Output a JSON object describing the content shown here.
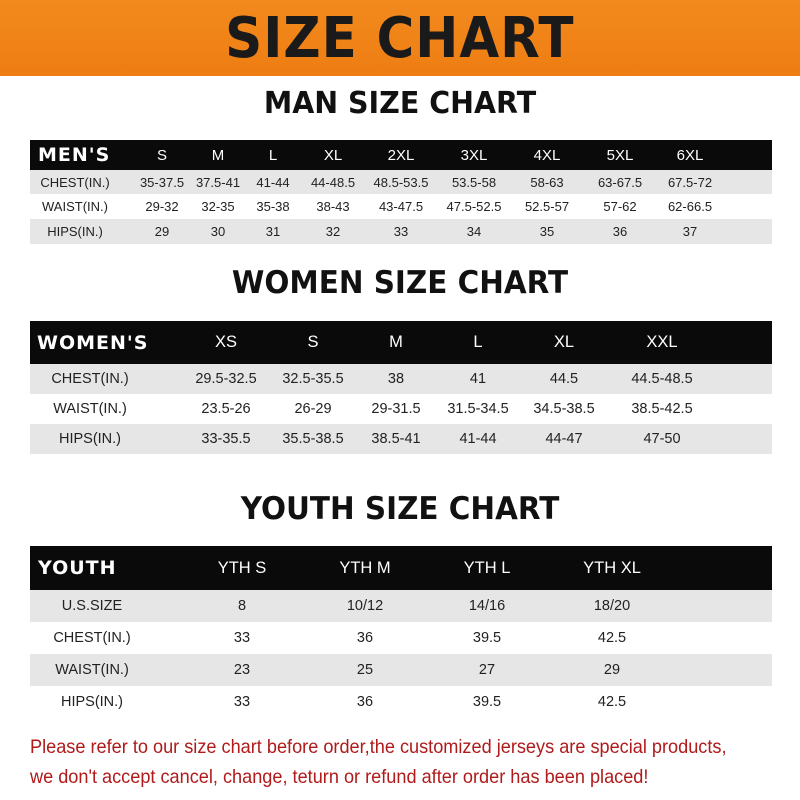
{
  "banner": {
    "title": "SIZE CHART",
    "color": "#f28a1e"
  },
  "note": {
    "line1": "Please refer to our size chart before order,the customized jerseys are special products,",
    "line2": "we don't accept cancel, change, teturn or refund after order has been placed!",
    "color": "#b01a1a"
  },
  "tables": [
    {
      "title": "MAN SIZE CHART",
      "header": [
        "MEN'S",
        "S",
        "M",
        "L",
        "XL",
        "2XL",
        "3XL",
        "4XL",
        "5XL",
        "6XL"
      ],
      "rows": [
        [
          "CHEST(IN.)",
          "35-37.5",
          "37.5-41",
          "41-44",
          "44-48.5",
          "48.5-53.5",
          "53.5-58",
          "58-63",
          "63-67.5",
          "67.5-72"
        ],
        [
          "WAIST(IN.)",
          "29-32",
          "32-35",
          "35-38",
          "38-43",
          "43-47.5",
          "47.5-52.5",
          "52.5-57",
          "57-62",
          "62-66.5"
        ],
        [
          "HIPS(IN.)",
          "29",
          "30",
          "31",
          "32",
          "33",
          "34",
          "35",
          "36",
          "37"
        ]
      ]
    },
    {
      "title": "WOMEN SIZE CHART",
      "header": [
        "WOMEN'S",
        "XS",
        "S",
        "M",
        "L",
        "XL",
        "XXL"
      ],
      "rows": [
        [
          "CHEST(IN.)",
          "29.5-32.5",
          "32.5-35.5",
          "38",
          "41",
          "44.5",
          "44.5-48.5"
        ],
        [
          "WAIST(IN.)",
          "23.5-26",
          "26-29",
          "29-31.5",
          "31.5-34.5",
          "34.5-38.5",
          "38.5-42.5"
        ],
        [
          "HIPS(IN.)",
          "33-35.5",
          "35.5-38.5",
          "38.5-41",
          "41-44",
          "44-47",
          "47-50"
        ]
      ]
    },
    {
      "title": "YOUTH SIZE CHART",
      "header": [
        "YOUTH",
        "YTH S",
        "YTH M",
        "YTH L",
        "YTH XL"
      ],
      "rows": [
        [
          "U.S.SIZE",
          "8",
          "10/12",
          "14/16",
          "18/20"
        ],
        [
          "CHEST(IN.)",
          "33",
          "36",
          "39.5",
          "42.5"
        ],
        [
          "WAIST(IN.)",
          "23",
          "25",
          "27",
          "29"
        ],
        [
          "HIPS(IN.)",
          "33",
          "36",
          "39.5",
          "42.5"
        ]
      ]
    }
  ]
}
